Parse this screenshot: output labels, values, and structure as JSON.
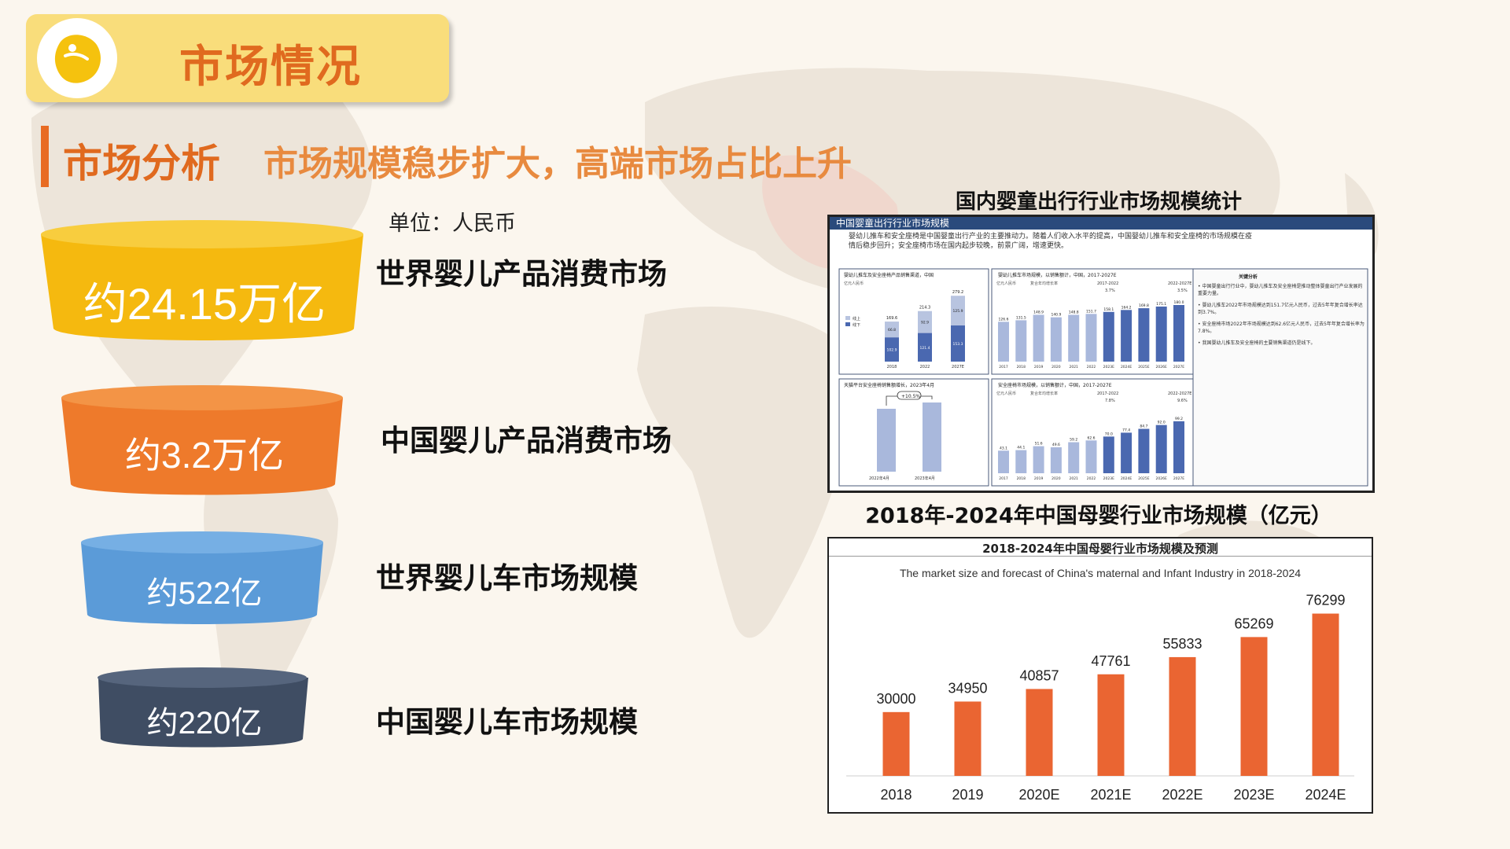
{
  "header": {
    "title": "市场情况",
    "logo_icon": "bean-logo-icon"
  },
  "section": {
    "title": "市场分析",
    "subtitle": "市场规模稳步扩大，高端市场占比上升",
    "unit": "单位：人民币"
  },
  "funnel": [
    {
      "value": "约24.15万亿",
      "label": "世界婴儿产品消费市场",
      "color": "#f5b90f",
      "top_color": "#f8cd3e"
    },
    {
      "value": "约3.2万亿",
      "label": "中国婴儿产品消费市场",
      "color": "#ee7a2b",
      "top_color": "#f39446"
    },
    {
      "value": "约522亿",
      "label": "世界婴儿车市场规模",
      "color": "#5b9bd8",
      "top_color": "#76afe4"
    },
    {
      "value": "约220亿",
      "label": "中国婴儿车市场规模",
      "color": "#3f4d63",
      "top_color": "#56657d"
    }
  ],
  "embedded_report": {
    "heading": "国内婴童出行行业市场规模统计",
    "banner": "中国婴童出行行业市场规模",
    "intro": "婴幼儿推车和安全座椅是中国婴童出行产业的主要推动力。随着人们收入水平的提高，中国婴幼儿推车和安全座椅的市场规模在疫情后稳步回升；安全座椅市场在国内起步较晚，前景广阔，增速更快。",
    "panel_a": {
      "title": "婴幼儿推车及安全座椅产品销售渠道，中国",
      "unit": "亿元人民币",
      "legend": [
        "线上",
        "线下"
      ],
      "categories": [
        "2018",
        "2022",
        "2027E"
      ],
      "totals": [
        "169.6",
        "214.3",
        "279.2"
      ],
      "online": [
        "66.8",
        "92.9",
        "125.9"
      ],
      "offline": [
        "102.9",
        "121.4",
        "153.3"
      ]
    },
    "panel_b": {
      "title": "婴幼儿推车市场规模，以销售额计，中国，2017-2027E",
      "unit": "亿元人民币",
      "cagr_label": "复合年均增长率",
      "period1": "2017-2022",
      "period2": "2022-2027E",
      "cagr1": "3.7%",
      "cagr2": "3.5%",
      "categories": [
        "2017",
        "2018",
        "2019",
        "2020",
        "2021",
        "2022",
        "2023E",
        "2024E",
        "2025E",
        "2026E",
        "2027E"
      ],
      "values": [
        126.6,
        131.5,
        148.9,
        140.9,
        148.8,
        151.7,
        158.1,
        164.2,
        169.8,
        175.1,
        180.0
      ]
    },
    "panel_c": {
      "title": "天猫平台安全座椅销售额增长，2023年4月",
      "growth": "+10.5%",
      "categories": [
        "2022年4月",
        "2023年4月"
      ]
    },
    "panel_d": {
      "title": "安全座椅市场规模，以销售额计，中国，2017-2027E",
      "unit": "亿元人民币",
      "cagr_label": "复合年均增长率",
      "period1": "2017-2022",
      "period2": "2022-2027E",
      "cagr1": "7.8%",
      "cagr2": "9.6%",
      "categories": [
        "2017",
        "2018",
        "2019",
        "2020",
        "2021",
        "2022",
        "2023E",
        "2024E",
        "2025E",
        "2026E",
        "2027E"
      ],
      "values": [
        43.1,
        44.1,
        51.6,
        49.6,
        59.2,
        62.6,
        70.0,
        77.4,
        84.7,
        92.0,
        99.2
      ]
    },
    "key_analysis": {
      "title": "关键分析",
      "points": [
        "中国婴童出行行业中，婴幼儿推车及安全座椅是推动整体婴童出行产业发展的重要力量。",
        "婴幼儿推车2022年市场规模达到151.7亿元人民币，过去5年年复合增长率达到3.7%。",
        "安全座椅市场2022年市场规模达到62.6亿元人民币，过去5年年复合增长率为7.8%。",
        "我国婴幼儿推车及安全座椅的主要销售渠道仍是线下。"
      ]
    }
  },
  "chart_data": {
    "type": "bar",
    "heading": "2018年-2024年中国母婴行业市场规模（亿元）",
    "title": "2018-2024年中国母婴行业市场规模及预测",
    "subtitle": "The market size and forecast of China's maternal and Infant Industry in 2018-2024",
    "categories": [
      "2018",
      "2019",
      "2020E",
      "2021E",
      "2022E",
      "2023E",
      "2024E"
    ],
    "values": [
      30000,
      34950,
      40857,
      47761,
      55833,
      65269,
      76299
    ],
    "ylim": [
      0,
      85000
    ],
    "bar_color": "#ea6532"
  }
}
